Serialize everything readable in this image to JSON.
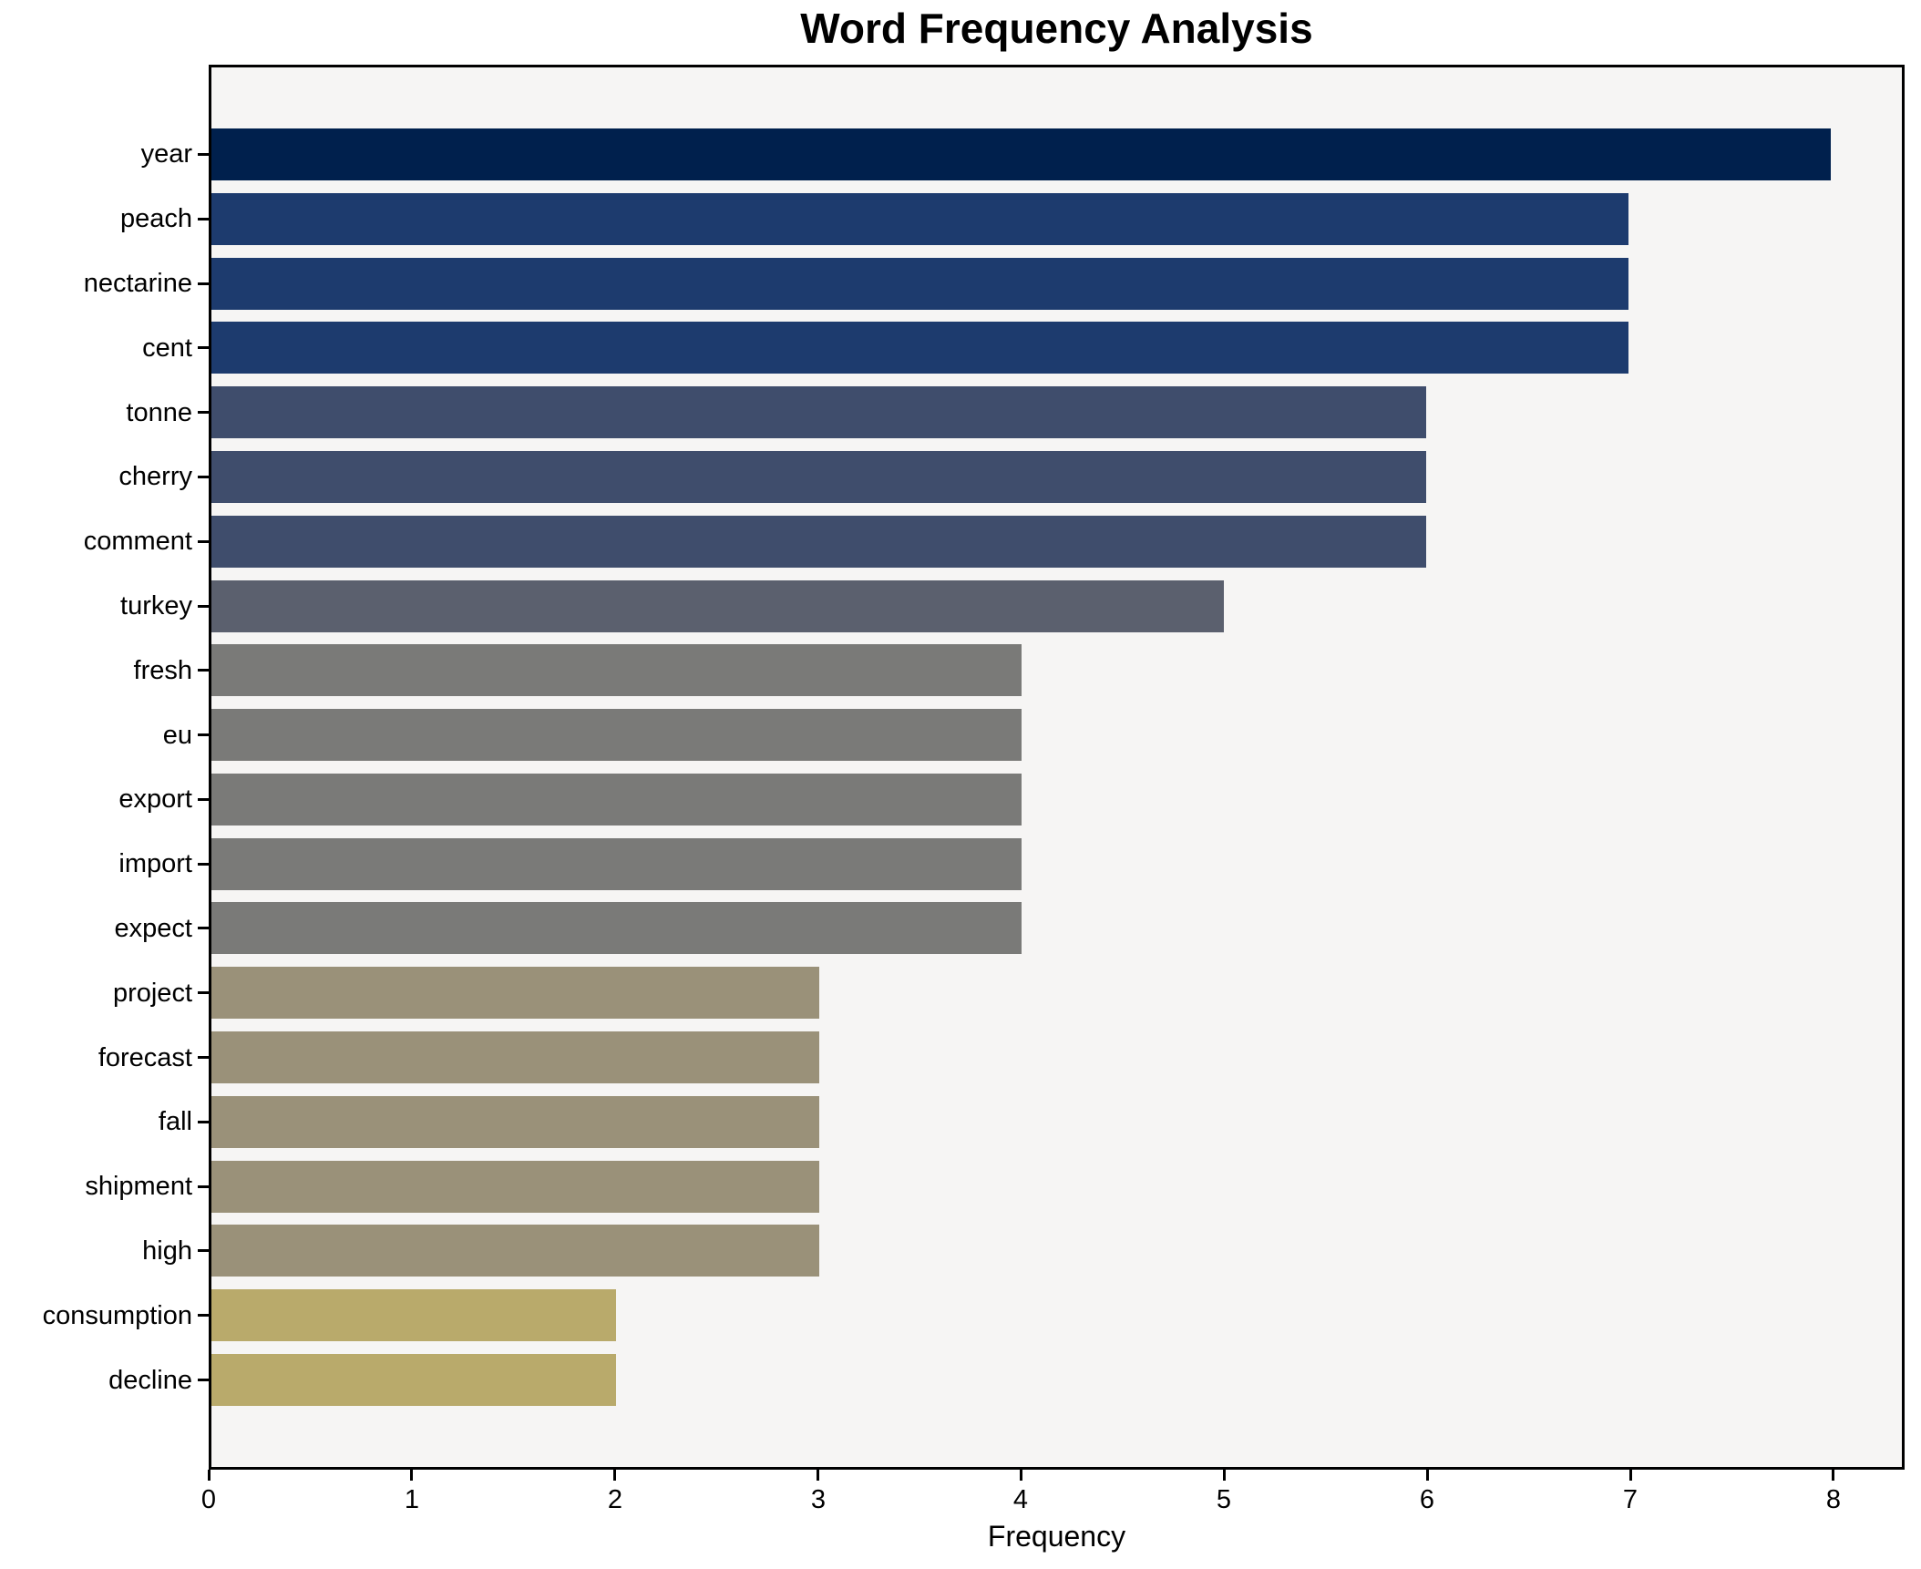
{
  "figure": {
    "background": "#ffffff",
    "plot_background": "#f6f5f4",
    "frame_color": "#000000",
    "text_color": "#000000"
  },
  "chart_data": {
    "type": "bar",
    "orientation": "horizontal",
    "title": "Word Frequency Analysis",
    "xlabel": "Frequency",
    "ylabel": "",
    "categories": [
      "year",
      "peach",
      "nectarine",
      "cent",
      "tonne",
      "cherry",
      "comment",
      "turkey",
      "fresh",
      "eu",
      "export",
      "import",
      "expect",
      "project",
      "forecast",
      "fall",
      "shipment",
      "high",
      "consumption",
      "decline"
    ],
    "values": [
      8,
      7,
      7,
      7,
      6,
      6,
      6,
      5,
      4,
      4,
      4,
      4,
      4,
      3,
      3,
      3,
      3,
      3,
      2,
      2
    ],
    "bar_colors": [
      "#00204d",
      "#1d3b6e",
      "#1d3b6e",
      "#1d3b6e",
      "#3f4d6c",
      "#3f4d6c",
      "#3f4d6c",
      "#5b606e",
      "#7a7a78",
      "#7a7a78",
      "#7a7a78",
      "#7a7a78",
      "#7a7a78",
      "#9a9179",
      "#9a9179",
      "#9a9179",
      "#9a9179",
      "#9a9179",
      "#b9aa6b",
      "#b9aa6b"
    ],
    "x_ticks": [
      "0",
      "1",
      "2",
      "3",
      "4",
      "5",
      "6",
      "7",
      "8"
    ],
    "xlim": [
      0,
      8.35
    ],
    "bar_height_frac": 0.8,
    "grid": false,
    "legend": null,
    "colormap": "cividis-reversed-by-value"
  }
}
